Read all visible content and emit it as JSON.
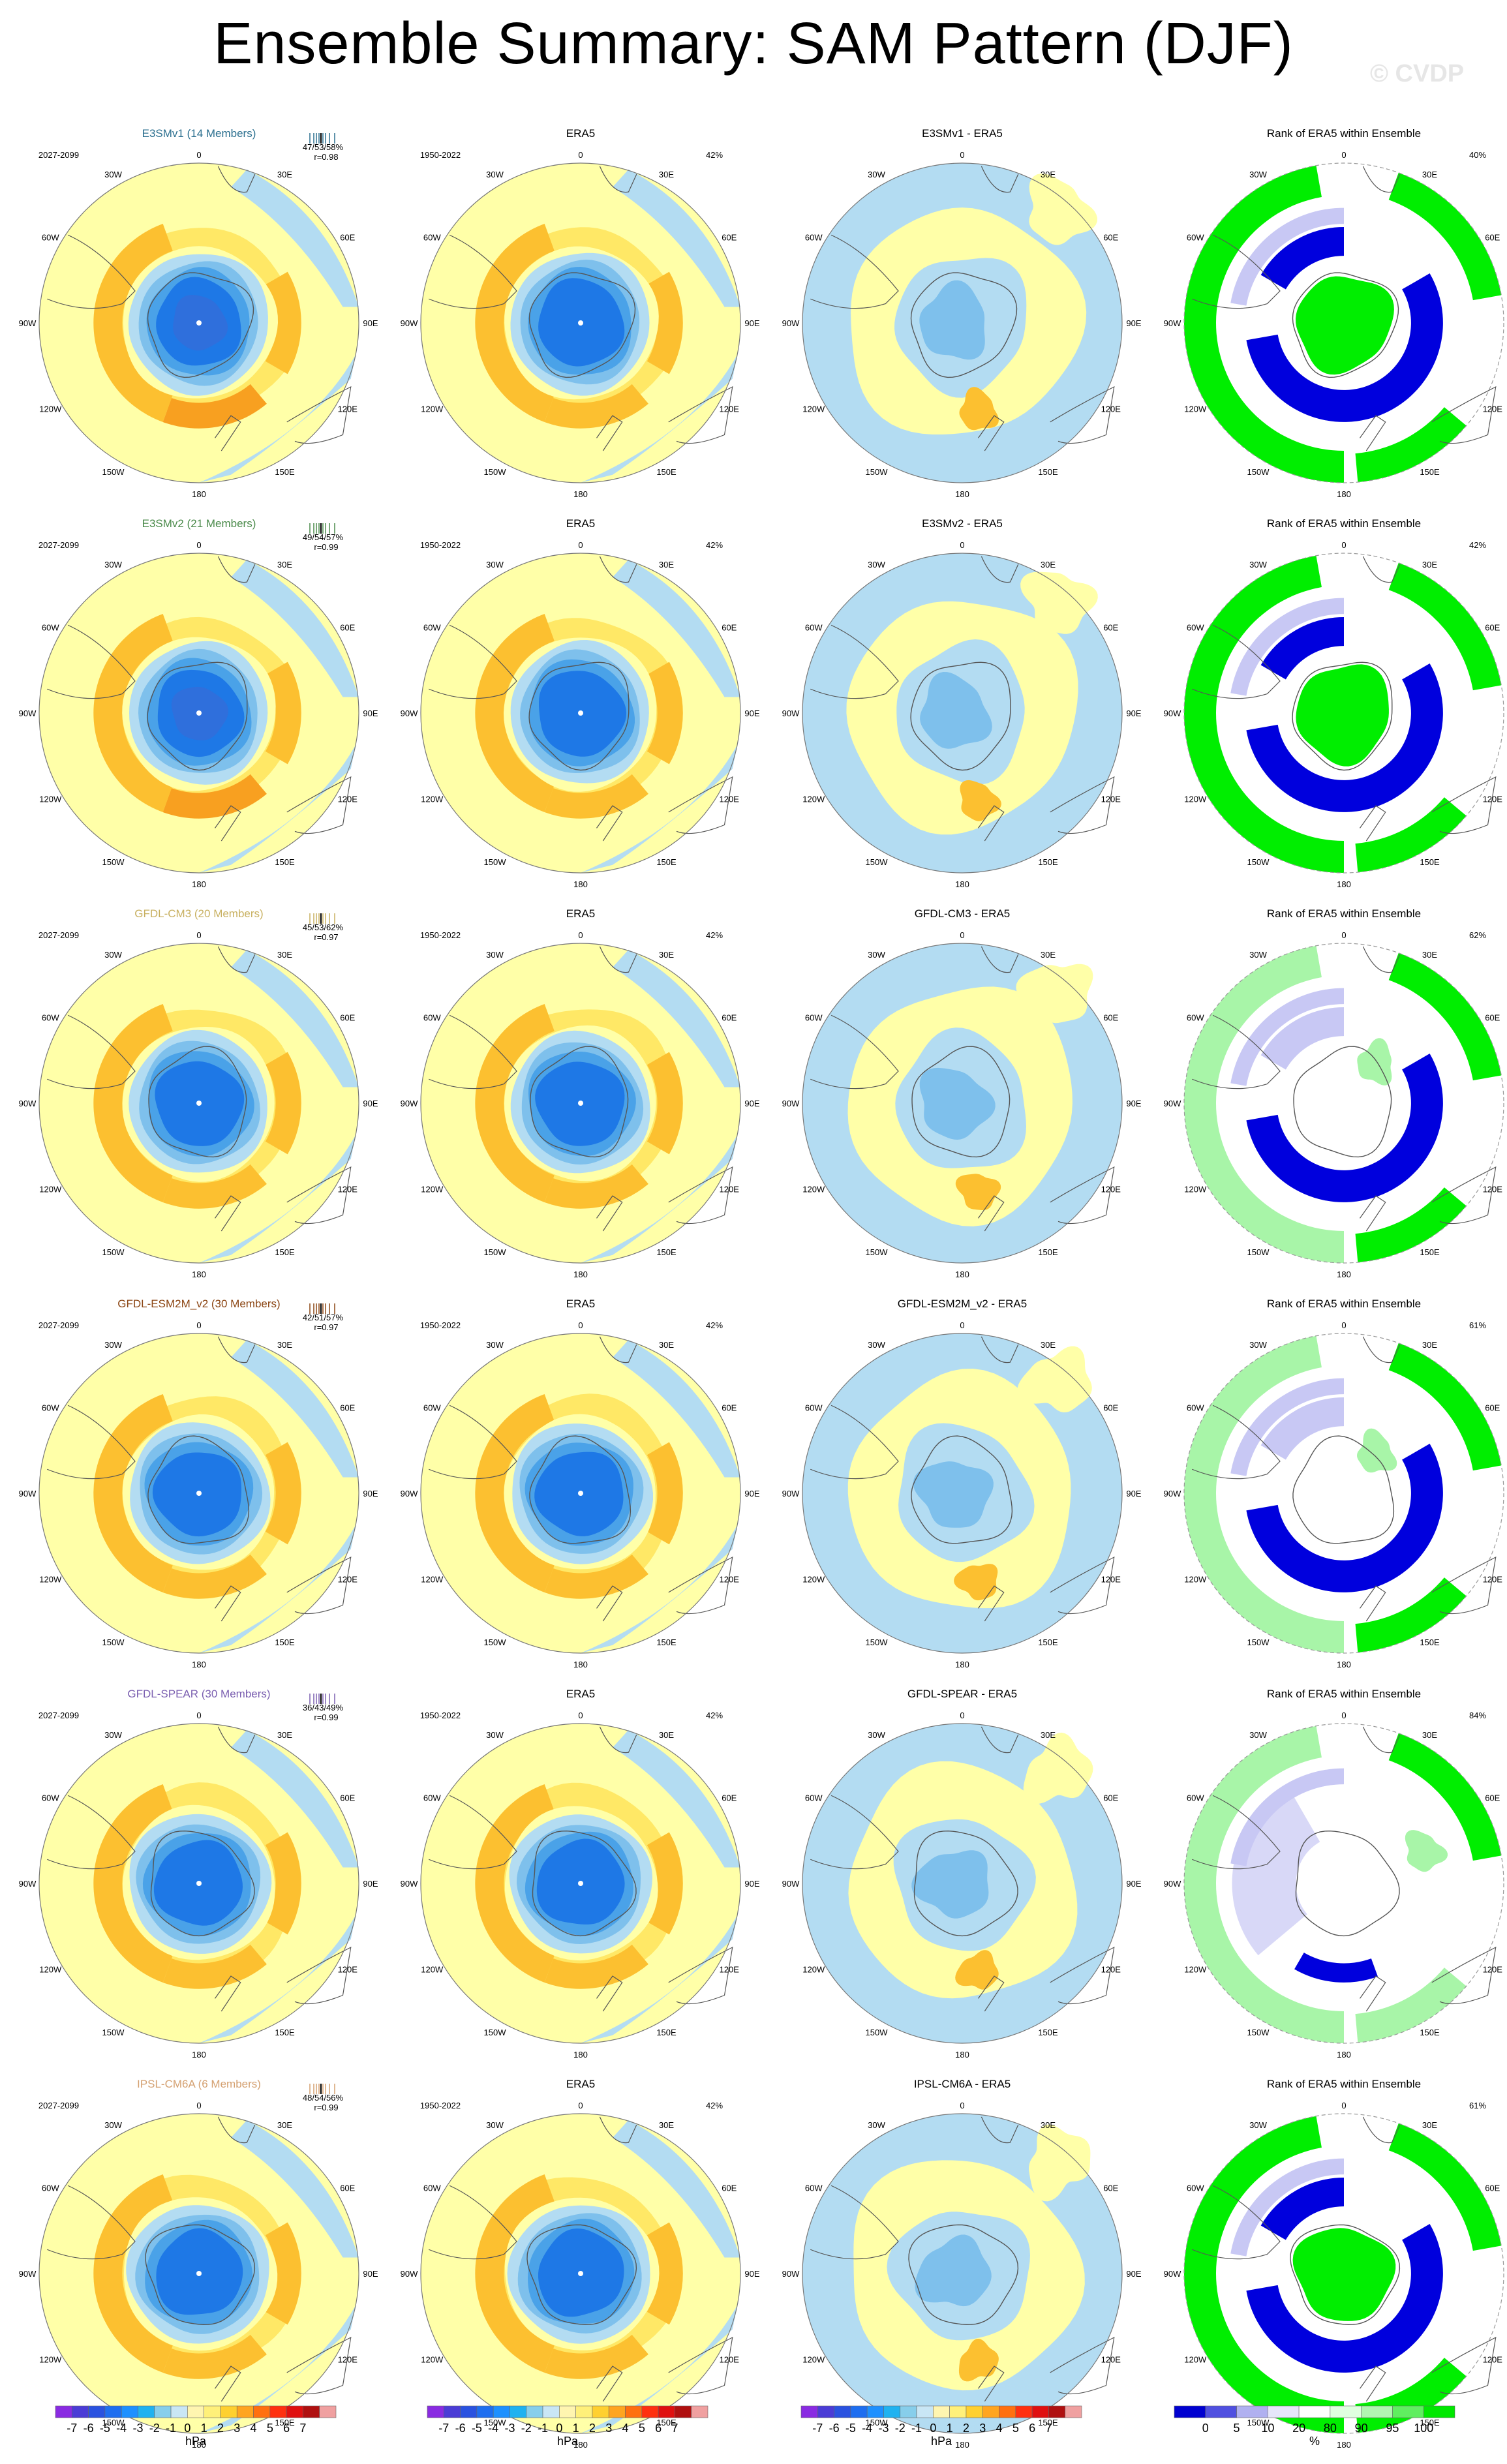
{
  "title": "Ensemble Summary: SAM Pattern (DJF)",
  "watermark": "© CVDP",
  "longitude_labels": [
    "0",
    "30E",
    "60E",
    "90E",
    "120E",
    "150E",
    "180",
    "150W",
    "120W",
    "90W",
    "60W",
    "30W"
  ],
  "rank_colormap_note": "",
  "rows": [
    {
      "model": "E3SMv1 (14 Members)",
      "model_color": "#2b6f8f",
      "model_period": "2027-2099",
      "model_stats": "47/53/58%",
      "model_r": "r=0.98",
      "obs_title": "ERA5",
      "obs_period": "1950-2022",
      "obs_pct": "42%",
      "diff_title": "E3SMv1 - ERA5",
      "rank_title": "Rank of ERA5 within Ensemble",
      "rank_pct": "40%",
      "rank_pattern": "type-a"
    },
    {
      "model": "E3SMv2 (21 Members)",
      "model_color": "#4a8a4a",
      "model_period": "2027-2099",
      "model_stats": "49/54/57%",
      "model_r": "r=0.99",
      "obs_title": "ERA5",
      "obs_period": "1950-2022",
      "obs_pct": "42%",
      "diff_title": "E3SMv2 - ERA5",
      "rank_title": "Rank of ERA5 within Ensemble",
      "rank_pct": "42%",
      "rank_pattern": "type-b"
    },
    {
      "model": "GFDL-CM3 (20 Members)",
      "model_color": "#c8b060",
      "model_period": "2027-2099",
      "model_stats": "45/53/62%",
      "model_r": "r=0.97",
      "obs_title": "ERA5",
      "obs_period": "1950-2022",
      "obs_pct": "42%",
      "diff_title": "GFDL-CM3 - ERA5",
      "rank_title": "Rank of ERA5 within Ensemble",
      "rank_pct": "62%",
      "rank_pattern": "type-c"
    },
    {
      "model": "GFDL-ESM2M_v2 (30 Members)",
      "model_color": "#8b4513",
      "model_period": "2027-2099",
      "model_stats": "42/51/57%",
      "model_r": "r=0.97",
      "obs_title": "ERA5",
      "obs_period": "1950-2022",
      "obs_pct": "42%",
      "diff_title": "GFDL-ESM2M_v2 - ERA5",
      "rank_title": "Rank of ERA5 within Ensemble",
      "rank_pct": "61%",
      "rank_pattern": "type-d"
    },
    {
      "model": "GFDL-SPEAR (30 Members)",
      "model_color": "#7b5fb0",
      "model_period": "2027-2099",
      "model_stats": "36/43/49%",
      "model_r": "r=0.99",
      "obs_title": "ERA5",
      "obs_period": "1950-2022",
      "obs_pct": "42%",
      "diff_title": "GFDL-SPEAR - ERA5",
      "rank_title": "Rank of ERA5 within Ensemble",
      "rank_pct": "84%",
      "rank_pattern": "type-e"
    },
    {
      "model": "IPSL-CM6A (6 Members)",
      "model_color": "#d4a070",
      "model_period": "2027-2099",
      "model_stats": "48/54/56%",
      "model_r": "r=0.99",
      "obs_title": "ERA5",
      "obs_period": "1950-2022",
      "obs_pct": "42%",
      "diff_title": "IPSL-CM6A - ERA5",
      "rank_title": "Rank of ERA5 within Ensemble",
      "rank_pct": "61%",
      "rank_pattern": "type-f"
    }
  ],
  "colorbars": {
    "hpa": {
      "ticks": [
        "-7",
        "-6",
        "-5",
        "-4",
        "-3",
        "-2",
        "-1",
        "0",
        "1",
        "2",
        "3",
        "4",
        "5",
        "6",
        "7"
      ],
      "unit": "hPa",
      "colors": [
        "#8a2be2",
        "#4b3cd6",
        "#2a52e0",
        "#1e6ef0",
        "#1e90ff",
        "#20b2f0",
        "#87ceeb",
        "#c9e6f5",
        "#fff5b0",
        "#fff07a",
        "#ffd030",
        "#ffa520",
        "#ff7010",
        "#ff3010",
        "#e01010",
        "#b01010",
        "#f0a0a0"
      ]
    },
    "rank": {
      "ticks": [
        "0",
        "5",
        "10",
        "20",
        "80",
        "90",
        "95",
        "100"
      ],
      "unit": "%",
      "colors": [
        "#0000d0",
        "#5050e0",
        "#b0b0f0",
        "#e6e6fa",
        "#ffffff",
        "#e0ffe0",
        "#b0f5b0",
        "#60ee60",
        "#00e800"
      ]
    }
  },
  "palette": {
    "yellow_light": "#ffffa8",
    "yellow_mid": "#ffe866",
    "orange": "#fcc030",
    "orange_deep": "#f8a020",
    "blue_pale": "#b3dcf2",
    "blue_light": "#7ec0ec",
    "blue_mid": "#4aa2e8",
    "blue_deep": "#1e78e6",
    "blue_core": "#2f6fdc",
    "rank_blue": "#0000dd",
    "rank_lav": "#c8c8f4",
    "rank_green": "#00ee00",
    "rank_green_light": "#a8f5a8"
  }
}
